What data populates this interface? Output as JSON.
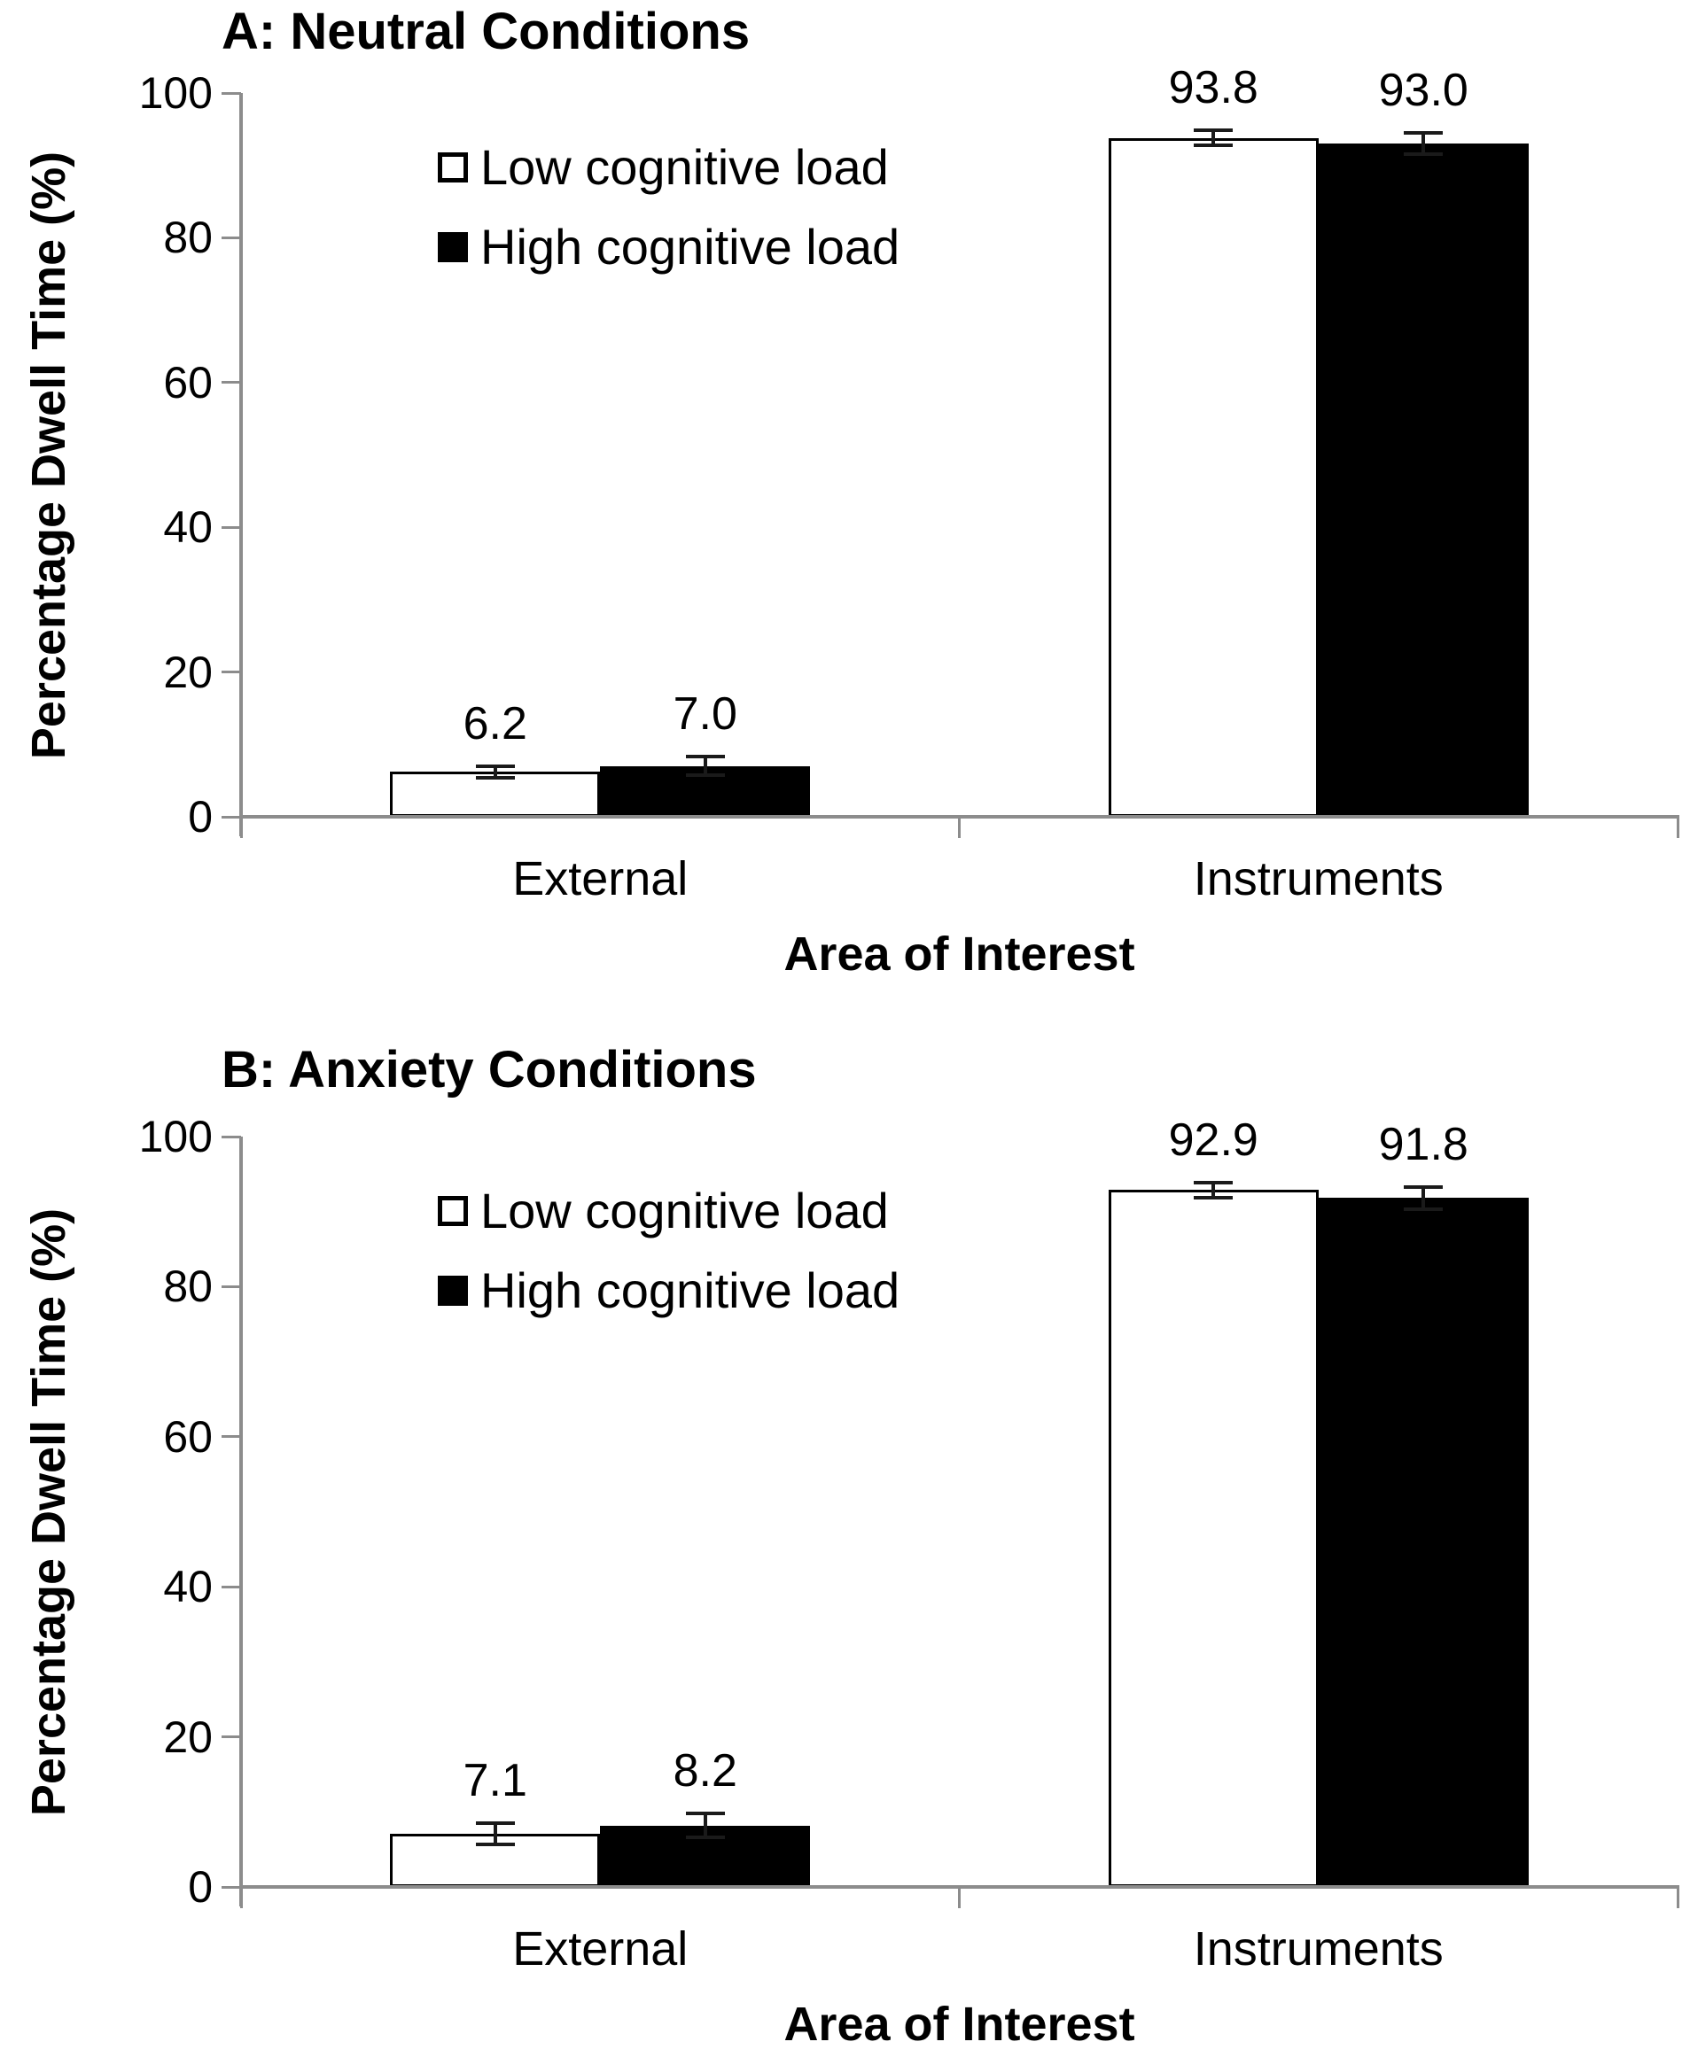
{
  "figure": {
    "y_axis_label": "Percentage Dwell Time (%)",
    "x_axis_label": "Area of Interest",
    "legend": [
      {
        "label": "Low cognitive load",
        "fill": "#ffffff"
      },
      {
        "label": "High cognitive load",
        "fill": "#000000"
      }
    ],
    "colors": {
      "axis": "#8c8c8c",
      "bar_low_fill": "#ffffff",
      "bar_high_fill": "#000000",
      "bar_border": "#000000",
      "error_bar": "#1a1a1a",
      "text": "#000000",
      "background": "#ffffff"
    }
  },
  "chart_data": [
    {
      "type": "bar",
      "panel": "A",
      "title": "A: Neutral Conditions",
      "categories": [
        "External",
        "Instruments"
      ],
      "series": [
        {
          "name": "Low cognitive load",
          "fill": "#ffffff",
          "values": [
            6.2,
            93.8
          ],
          "errors": [
            0.8,
            1.0
          ]
        },
        {
          "name": "High cognitive load",
          "fill": "#000000",
          "values": [
            7.0,
            93.0
          ],
          "errors": [
            1.3,
            1.5
          ]
        }
      ],
      "value_labels": [
        "6.2",
        "7.0",
        "93.8",
        "93.0"
      ],
      "xlabel": "Area of Interest",
      "ylabel": "Percentage Dwell Time (%)",
      "ylim": [
        0,
        100
      ],
      "yticks": [
        0,
        20,
        40,
        60,
        80,
        100
      ],
      "grid": "off",
      "legend_position": "top-left-inside"
    },
    {
      "type": "bar",
      "panel": "B",
      "title": "B: Anxiety Conditions",
      "categories": [
        "External",
        "Instruments"
      ],
      "series": [
        {
          "name": "Low cognitive load",
          "fill": "#ffffff",
          "values": [
            7.1,
            92.9
          ],
          "errors": [
            1.4,
            1.0
          ]
        },
        {
          "name": "High cognitive load",
          "fill": "#000000",
          "values": [
            8.2,
            91.8
          ],
          "errors": [
            1.6,
            1.5
          ]
        }
      ],
      "value_labels": [
        "7.1",
        "8.2",
        "92.9",
        "91.8"
      ],
      "xlabel": "Area of Interest",
      "ylabel": "Percentage Dwell Time (%)",
      "ylim": [
        0,
        100
      ],
      "yticks": [
        0,
        20,
        40,
        60,
        80,
        100
      ],
      "grid": "off",
      "legend_position": "top-left-inside"
    }
  ]
}
